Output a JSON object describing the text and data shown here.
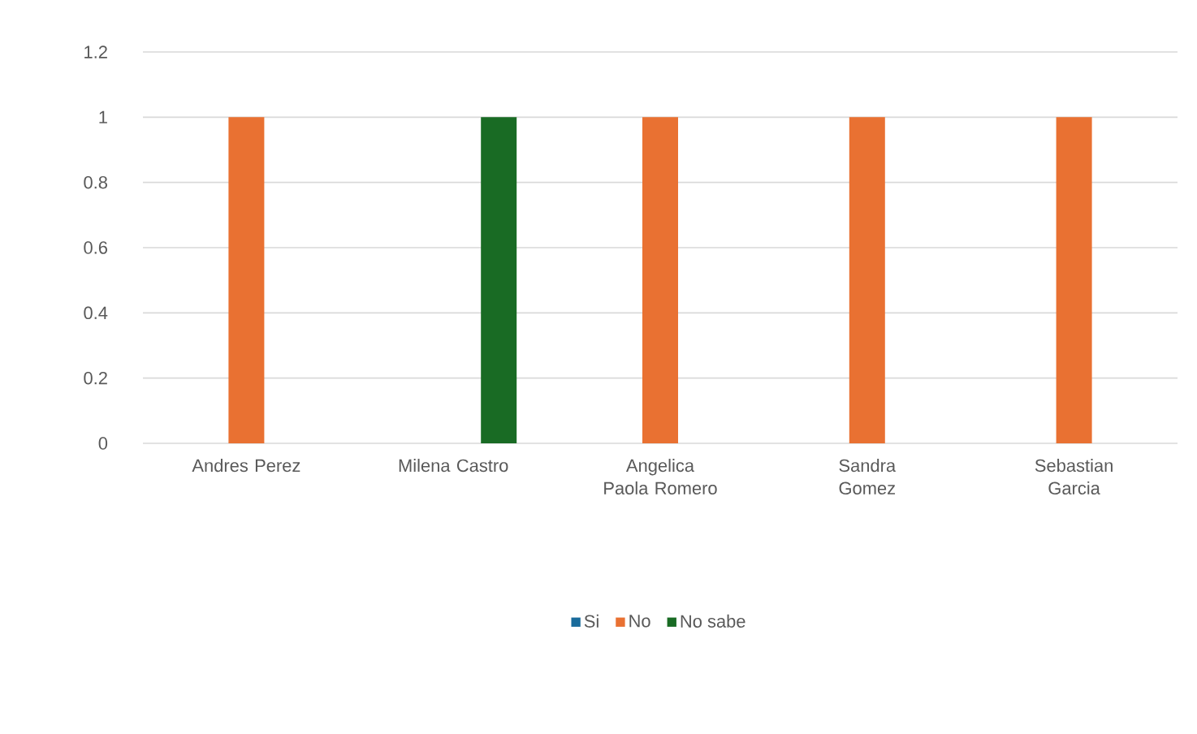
{
  "chart_data": {
    "type": "bar",
    "categories": [
      "Andres Perez",
      "Milena Castro",
      "Angelica Paola Romero",
      "Sandra Gomez",
      "Sebastian Garcia"
    ],
    "series": [
      {
        "name": "Si",
        "color": "#196b9b",
        "values": [
          null,
          null,
          null,
          null,
          null
        ]
      },
      {
        "name": "No",
        "color": "#e97132",
        "values": [
          1,
          null,
          1,
          1,
          1
        ]
      },
      {
        "name": "No sabe",
        "color": "#196b24",
        "values": [
          null,
          1,
          null,
          null,
          null
        ]
      }
    ],
    "ylim": [
      0,
      1.2
    ],
    "yticks": [
      0,
      0.2,
      0.4,
      0.6,
      0.8,
      1,
      1.2
    ],
    "grid": "y",
    "legend": "bottom"
  }
}
